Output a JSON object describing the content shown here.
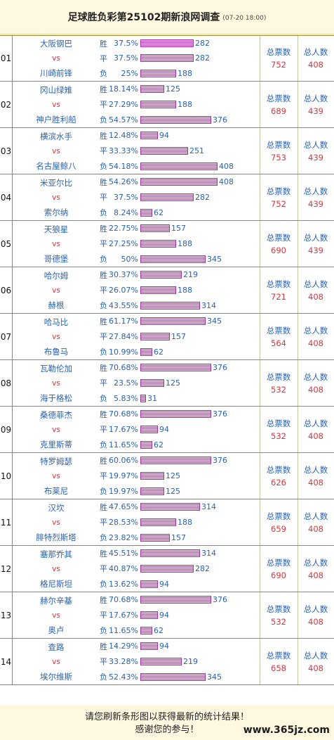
{
  "header": {
    "title": "足球胜负彩第25102期新浪网调查",
    "time": "(07-20 18:00)"
  },
  "labels": {
    "win": "胜",
    "draw": "平",
    "lose": "负",
    "vs": "vs",
    "total_votes": "总票数",
    "total_people": "总人数"
  },
  "colors": {
    "team": "#2a62b0",
    "vs": "#d8363c",
    "stat_value": "#d8363c",
    "bar": "#c150c1"
  },
  "matches": [
    {
      "no": "01",
      "home": "大阪钢巴",
      "away": "川崎前锋",
      "win": {
        "pct": "37.5%",
        "count": 282
      },
      "draw": {
        "pct": "37.5%",
        "count": 282
      },
      "lose": {
        "pct": "25%",
        "count": 188
      },
      "total_votes": "752",
      "total_people": "408"
    },
    {
      "no": "02",
      "home": "冈山绿雉",
      "away": "神户胜利船",
      "win": {
        "pct": "18.14%",
        "count": 125
      },
      "draw": {
        "pct": "27.29%",
        "count": 188
      },
      "lose": {
        "pct": "54.57%",
        "count": 376
      },
      "total_votes": "689",
      "total_people": "439"
    },
    {
      "no": "03",
      "home": "横滨水手",
      "away": "名古屋鲸八",
      "win": {
        "pct": "12.48%",
        "count": 94
      },
      "draw": {
        "pct": "33.33%",
        "count": 251
      },
      "lose": {
        "pct": "54.18%",
        "count": 408
      },
      "total_votes": "753",
      "total_people": "439"
    },
    {
      "no": "04",
      "home": "米亚尔比",
      "away": "索尔纳",
      "win": {
        "pct": "54.26%",
        "count": 408
      },
      "draw": {
        "pct": "37.5%",
        "count": 282
      },
      "lose": {
        "pct": "8.24%",
        "count": 62
      },
      "total_votes": "752",
      "total_people": "439"
    },
    {
      "no": "05",
      "home": "天狼星",
      "away": "哥德堡",
      "win": {
        "pct": "22.75%",
        "count": 157
      },
      "draw": {
        "pct": "27.25%",
        "count": 188
      },
      "lose": {
        "pct": "50%",
        "count": 345
      },
      "total_votes": "690",
      "total_people": "439"
    },
    {
      "no": "06",
      "home": "哈尔姆",
      "away": "赫根",
      "win": {
        "pct": "30.37%",
        "count": 219
      },
      "draw": {
        "pct": "26.07%",
        "count": 188
      },
      "lose": {
        "pct": "43.55%",
        "count": 314
      },
      "total_votes": "721",
      "total_people": "408"
    },
    {
      "no": "07",
      "home": "哈马比",
      "away": "布鲁马",
      "win": {
        "pct": "61.17%",
        "count": 345
      },
      "draw": {
        "pct": "27.84%",
        "count": 157
      },
      "lose": {
        "pct": "10.99%",
        "count": 62
      },
      "total_votes": "564",
      "total_people": "408"
    },
    {
      "no": "08",
      "home": "瓦勒伦加",
      "away": "海于格松",
      "win": {
        "pct": "70.68%",
        "count": 376
      },
      "draw": {
        "pct": "23.5%",
        "count": 125
      },
      "lose": {
        "pct": "5.83%",
        "count": 31
      },
      "total_votes": "532",
      "total_people": "408"
    },
    {
      "no": "09",
      "home": "桑德菲杰",
      "away": "克里斯蒂",
      "win": {
        "pct": "70.68%",
        "count": 376
      },
      "draw": {
        "pct": "17.67%",
        "count": 94
      },
      "lose": {
        "pct": "11.65%",
        "count": 62
      },
      "total_votes": "532",
      "total_people": "408"
    },
    {
      "no": "10",
      "home": "特罗姆瑟",
      "away": "布莱尼",
      "win": {
        "pct": "60.06%",
        "count": 376
      },
      "draw": {
        "pct": "19.97%",
        "count": 125
      },
      "lose": {
        "pct": "19.97%",
        "count": 125
      },
      "total_votes": "626",
      "total_people": "408"
    },
    {
      "no": "11",
      "home": "汉坎",
      "away": "腓特烈斯塔",
      "win": {
        "pct": "47.65%",
        "count": 314
      },
      "draw": {
        "pct": "28.53%",
        "count": 188
      },
      "lose": {
        "pct": "23.82%",
        "count": 157
      },
      "total_votes": "659",
      "total_people": "408"
    },
    {
      "no": "12",
      "home": "塞那乔其",
      "away": "格尼斯坦",
      "win": {
        "pct": "45.51%",
        "count": 314
      },
      "draw": {
        "pct": "40.87%",
        "count": 282
      },
      "lose": {
        "pct": "13.62%",
        "count": 94
      },
      "total_votes": "690",
      "total_people": "408"
    },
    {
      "no": "13",
      "home": "赫尔辛基",
      "away": "奥卢",
      "win": {
        "pct": "70.68%",
        "count": 376
      },
      "draw": {
        "pct": "17.67%",
        "count": 94
      },
      "lose": {
        "pct": "11.65%",
        "count": 62
      },
      "total_votes": "532",
      "total_people": "408"
    },
    {
      "no": "14",
      "home": "查路",
      "away": "埃尔维斯",
      "win": {
        "pct": "14.29%",
        "count": 94
      },
      "draw": {
        "pct": "33.28%",
        "count": 219
      },
      "lose": {
        "pct": "52.43%",
        "count": 345
      },
      "total_votes": "658",
      "total_people": "408"
    }
  ],
  "footer": {
    "line1": "请您刷新条形图以获得最新的统计结果！",
    "line2": "感谢您的参与！",
    "watermark": "www.365jz.com"
  }
}
